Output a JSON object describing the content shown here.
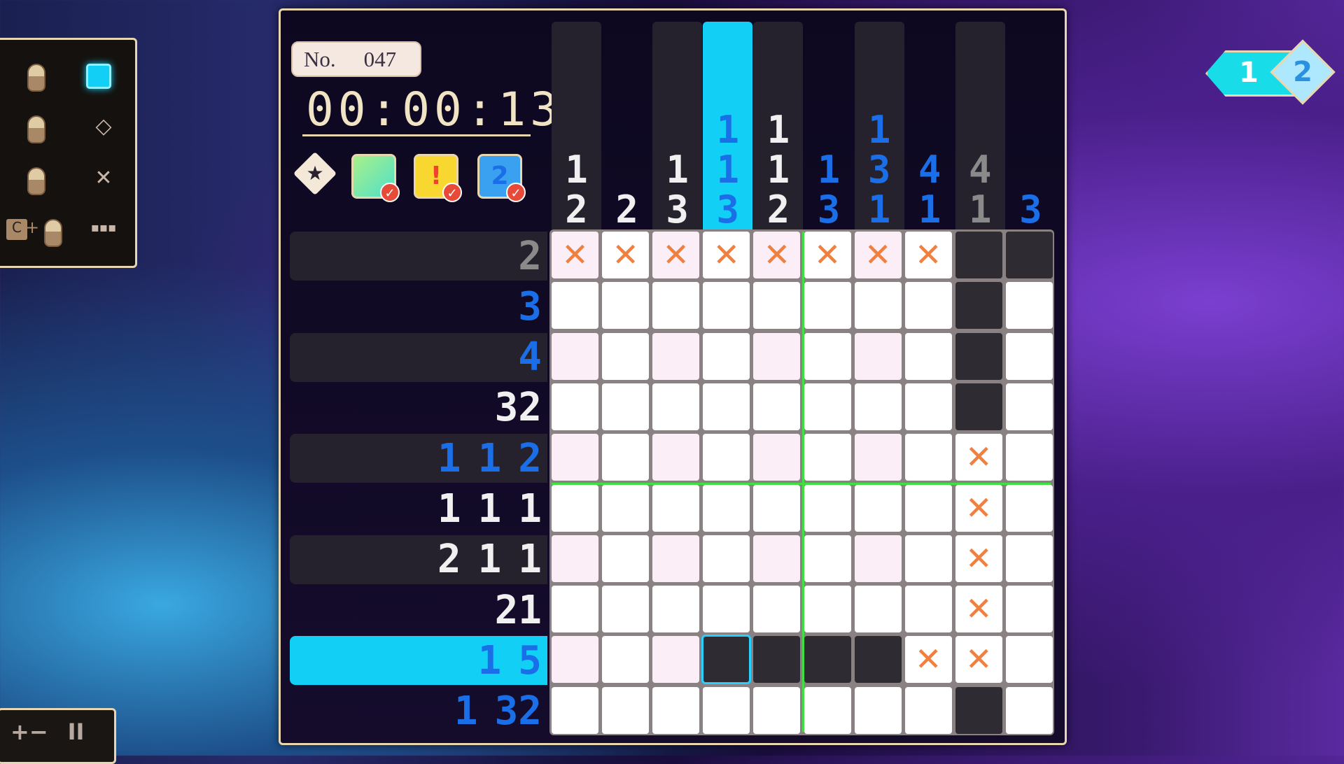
{
  "puzzle": {
    "number_label": "No.",
    "number": "047",
    "timer": "00:00:13"
  },
  "controls": {
    "left_click": "fill",
    "right_click": "diamond",
    "middle_click": "cross",
    "ctrl_click": "drag",
    "diamond_glyph": "◇",
    "cross_glyph": "✕",
    "ctrl_key": "C",
    "plus": "+",
    "dots": "▪▪▪"
  },
  "bottom_controls": {
    "zoom": "+−",
    "pause": "II"
  },
  "page_indicator": {
    "current": "1",
    "next": "2"
  },
  "hint_icons": [
    "star-badge",
    "grid-hint",
    "alert-hint",
    "number-hint"
  ],
  "hint_glyphs": {
    "star": "★",
    "alert": "!",
    "number": "2",
    "check": "✓"
  },
  "colors": {
    "accent": "#12d0f5",
    "clue_done": "#1a6ee8",
    "clue_white": "#f0f0f0",
    "clue_gray": "#8a8a8a",
    "cross": "#f08040",
    "guide": "#40e040"
  },
  "column_clues": [
    {
      "nums": [
        "1",
        "2"
      ],
      "state": "white"
    },
    {
      "nums": [
        "2"
      ],
      "state": "white"
    },
    {
      "nums": [
        "1",
        "3"
      ],
      "state": "white"
    },
    {
      "nums": [
        "1",
        "1",
        "3"
      ],
      "state": "blue",
      "highlight": true
    },
    {
      "nums": [
        "1",
        "1",
        "2"
      ],
      "state": "white"
    },
    {
      "nums": [
        "1",
        "3"
      ],
      "state": "blue"
    },
    {
      "nums": [
        "1",
        "3",
        "1"
      ],
      "state": "blue"
    },
    {
      "nums": [
        "4",
        "1"
      ],
      "state": "blue"
    },
    {
      "nums": [
        "4",
        "1"
      ],
      "state": "gray"
    },
    {
      "nums": [
        "3"
      ],
      "state": "blue"
    }
  ],
  "row_clues": [
    {
      "nums": [
        "2"
      ],
      "state": "gray"
    },
    {
      "nums": [
        "3"
      ],
      "state": "blue"
    },
    {
      "nums": [
        "4"
      ],
      "state": "blue"
    },
    {
      "nums": [
        "32"
      ],
      "state": "white"
    },
    {
      "nums": [
        "1",
        "1",
        "2"
      ],
      "state": "blue"
    },
    {
      "nums": [
        "1",
        "1",
        "1"
      ],
      "state": "white"
    },
    {
      "nums": [
        "2",
        "1",
        "1"
      ],
      "state": "white"
    },
    {
      "nums": [
        "21"
      ],
      "state": "white"
    },
    {
      "nums": [
        "1",
        "5"
      ],
      "state": "blue",
      "highlight": true
    },
    {
      "nums": [
        "1",
        "32"
      ],
      "state": "blue"
    }
  ],
  "grid": [
    "xxxxxxxxff",
    "........f.",
    "........f.",
    "........f.",
    "........x.",
    "........x.",
    "........x.",
    "........x.",
    "...ffffxx.",
    "........f."
  ],
  "cursor": {
    "row": 9,
    "col": 4
  }
}
